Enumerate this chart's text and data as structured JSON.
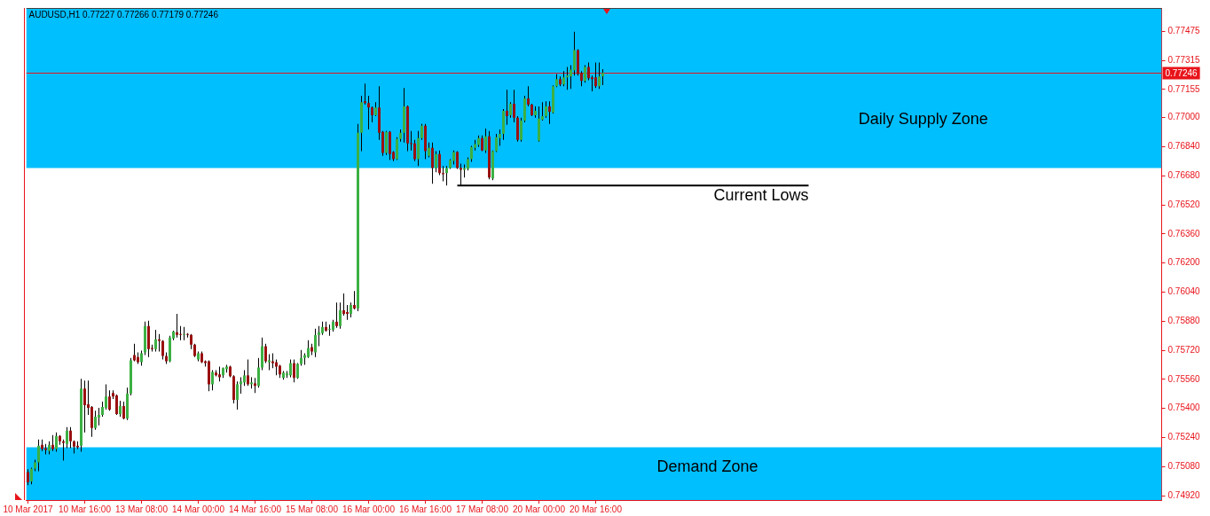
{
  "chart_data": {
    "type": "candlestick",
    "title": "AUDUSD,H1 0.77227 0.77266 0.77179 0.77246",
    "categories": [
      "10 Mar 2017",
      null,
      null,
      null,
      null,
      null,
      null,
      null,
      null,
      null,
      null,
      null,
      null,
      null,
      null,
      null,
      "10 Mar 16:00",
      null,
      null,
      null,
      null,
      null,
      null,
      null,
      null,
      null,
      null,
      null,
      null,
      null,
      null,
      null,
      "13 Mar 08:00",
      null,
      null,
      null,
      null,
      null,
      null,
      null,
      null,
      null,
      null,
      null,
      null,
      null,
      null,
      null,
      "14 Mar 00:00",
      null,
      null,
      null,
      null,
      null,
      null,
      null,
      null,
      null,
      null,
      null,
      null,
      null,
      null,
      null,
      "14 Mar 16:00",
      null,
      null,
      null,
      null,
      null,
      null,
      null,
      null,
      null,
      null,
      null,
      null,
      null,
      null,
      null,
      "15 Mar 08:00",
      null,
      null,
      null,
      null,
      null,
      null,
      null,
      null,
      null,
      null,
      null,
      null,
      null,
      null,
      null,
      "16 Mar 00:00",
      null,
      null,
      null,
      null,
      null,
      null,
      null,
      null,
      null,
      null,
      null,
      null,
      null,
      null,
      null,
      "16 Mar 16:00",
      null,
      null,
      null,
      null,
      null,
      null,
      null,
      null,
      null,
      null,
      null,
      null,
      null,
      null,
      null,
      "17 Mar 08:00",
      null,
      null,
      null,
      null,
      null,
      null,
      null,
      null,
      null,
      null,
      null,
      null,
      null,
      null,
      null,
      "20 Mar 00:00",
      null,
      null,
      null,
      null,
      null,
      null,
      null,
      null,
      null,
      null,
      null,
      null,
      null,
      null,
      null,
      "20 Mar 16:00",
      null,
      null,
      null,
      null,
      null,
      null,
      null,
      null,
      null,
      null,
      null,
      null,
      null,
      null,
      null,
      null,
      null,
      null,
      null,
      null,
      null,
      null,
      null,
      null,
      null,
      null,
      null,
      null,
      null,
      null,
      null,
      null,
      null,
      null,
      null,
      null,
      null,
      null,
      null,
      null,
      null,
      null,
      null,
      null,
      null,
      null,
      null,
      null,
      null,
      null,
      null,
      null,
      null,
      null,
      null,
      null,
      null,
      null,
      null,
      null,
      null,
      null,
      null,
      null,
      null,
      null,
      null,
      null,
      null,
      null,
      null,
      null,
      null,
      null,
      null,
      null,
      null,
      null,
      null,
      null,
      null,
      null,
      null,
      null,
      null,
      null,
      null,
      null,
      null,
      null,
      null,
      null,
      null,
      null,
      null,
      null,
      null,
      null,
      null,
      null,
      null,
      null,
      null,
      null,
      null,
      null,
      null,
      null,
      null,
      null,
      null,
      null,
      null,
      null,
      null,
      null,
      null,
      null,
      null,
      null,
      null,
      null,
      null,
      null,
      null,
      null,
      null,
      null,
      null,
      null,
      null,
      null,
      null,
      null,
      null,
      null,
      null,
      null,
      null,
      null,
      null,
      null,
      null,
      null,
      null,
      null,
      null,
      null,
      null,
      null,
      null,
      null,
      null,
      null,
      null,
      null,
      null,
      null,
      null
    ],
    "ohlc": [
      [
        0.7505,
        0.75065,
        0.74978,
        0.74993
      ],
      [
        0.74998,
        0.75074,
        0.74983,
        0.75069
      ],
      [
        0.75069,
        0.75118,
        0.75055,
        0.75103
      ],
      [
        0.75103,
        0.75229,
        0.75055,
        0.75195
      ],
      [
        0.752,
        0.75229,
        0.75166,
        0.75176
      ],
      [
        0.75181,
        0.75205,
        0.75147,
        0.75171
      ],
      [
        0.75166,
        0.75219,
        0.75147,
        0.752
      ],
      [
        0.752,
        0.75253,
        0.75166,
        0.75176
      ],
      [
        0.75176,
        0.75268,
        0.75162,
        0.75248
      ],
      [
        0.75248,
        0.75253,
        0.752,
        0.75219
      ],
      [
        0.75219,
        0.75229,
        0.75113,
        0.7521
      ],
      [
        0.75205,
        0.75297,
        0.75181,
        0.75278
      ],
      [
        0.75278,
        0.75297,
        0.75181,
        0.75219
      ],
      [
        0.75219,
        0.75224,
        0.75152,
        0.7519
      ],
      [
        0.75195,
        0.75219,
        0.75176,
        0.75186
      ],
      [
        0.75195,
        0.75563,
        0.75162,
        0.75509
      ],
      [
        0.75509,
        0.75553,
        0.75268,
        0.75418
      ],
      [
        0.75423,
        0.75553,
        0.75364,
        0.75403
      ],
      [
        0.75408,
        0.75413,
        0.75243,
        0.75292
      ],
      [
        0.75292,
        0.75388,
        0.75283,
        0.75355
      ],
      [
        0.7535,
        0.75403,
        0.75307,
        0.75364
      ],
      [
        0.75364,
        0.75437,
        0.75355,
        0.75408
      ],
      [
        0.75403,
        0.75533,
        0.75393,
        0.75466
      ],
      [
        0.75466,
        0.755,
        0.75388,
        0.75393
      ],
      [
        0.75485,
        0.755,
        0.75452,
        0.75466
      ],
      [
        0.75471,
        0.75476,
        0.75364,
        0.75369
      ],
      [
        0.75369,
        0.75442,
        0.75355,
        0.75413
      ],
      [
        0.75413,
        0.75437,
        0.7534,
        0.75345
      ],
      [
        0.75345,
        0.75514,
        0.75336,
        0.75481
      ],
      [
        0.75481,
        0.75678,
        0.75471,
        0.75664
      ],
      [
        0.75693,
        0.75756,
        0.75659,
        0.75664
      ],
      [
        0.75683,
        0.75708,
        0.75645,
        0.75654
      ],
      [
        0.75654,
        0.75718,
        0.75635,
        0.75703
      ],
      [
        0.75708,
        0.75877,
        0.75693,
        0.75853
      ],
      [
        0.75853,
        0.75882,
        0.75683,
        0.75727
      ],
      [
        0.75732,
        0.75751,
        0.75713,
        0.75727
      ],
      [
        0.75727,
        0.75833,
        0.75713,
        0.7578
      ],
      [
        0.7578,
        0.75809,
        0.75713,
        0.75771
      ],
      [
        0.75771,
        0.75775,
        0.75669,
        0.75688
      ],
      [
        0.75688,
        0.75708,
        0.75645,
        0.75659
      ],
      [
        0.75659,
        0.75799,
        0.75654,
        0.7579
      ],
      [
        0.75785,
        0.75828,
        0.75775,
        0.75823
      ],
      [
        0.75819,
        0.7592,
        0.7579,
        0.75804
      ],
      [
        0.75809,
        0.75853,
        0.75775,
        0.75804
      ],
      [
        0.75804,
        0.75848,
        0.75775,
        0.75809
      ],
      [
        0.75809,
        0.75814,
        0.7579,
        0.75804
      ],
      [
        0.75804,
        0.75809,
        0.75727,
        0.75751
      ],
      [
        0.75751,
        0.75756,
        0.75683,
        0.75688
      ],
      [
        0.75669,
        0.75713,
        0.75659,
        0.75703
      ],
      [
        0.75703,
        0.75713,
        0.75649,
        0.75654
      ],
      [
        0.75659,
        0.75664,
        0.7563,
        0.75649
      ],
      [
        0.75659,
        0.75664,
        0.75495,
        0.75533
      ],
      [
        0.75533,
        0.75611,
        0.755,
        0.75601
      ],
      [
        0.75597,
        0.75611,
        0.75577,
        0.75582
      ],
      [
        0.75587,
        0.7563,
        0.75548,
        0.75572
      ],
      [
        0.75582,
        0.75625,
        0.75568,
        0.75621
      ],
      [
        0.75616,
        0.7564,
        0.75597,
        0.7563
      ],
      [
        0.7563,
        0.75635,
        0.75572,
        0.75577
      ],
      [
        0.75577,
        0.75582,
        0.75428,
        0.75447
      ],
      [
        0.75447,
        0.75548,
        0.75393,
        0.75533
      ],
      [
        0.75533,
        0.75572,
        0.75481,
        0.75548
      ],
      [
        0.75543,
        0.75611,
        0.75524,
        0.75582
      ],
      [
        0.75582,
        0.75669,
        0.75524,
        0.75533
      ],
      [
        0.75533,
        0.75572,
        0.75509,
        0.75543
      ],
      [
        0.75538,
        0.75568,
        0.75485,
        0.75524
      ],
      [
        0.75524,
        0.75678,
        0.75514,
        0.75625
      ],
      [
        0.75625,
        0.7579,
        0.75611,
        0.75742
      ],
      [
        0.75742,
        0.75756,
        0.75649,
        0.75659
      ],
      [
        0.75654,
        0.75698,
        0.75611,
        0.75664
      ],
      [
        0.75659,
        0.75703,
        0.75621,
        0.75649
      ],
      [
        0.75654,
        0.75669,
        0.75582,
        0.7563
      ],
      [
        0.75635,
        0.7564,
        0.75568,
        0.75587
      ],
      [
        0.75568,
        0.75606,
        0.75558,
        0.75597
      ],
      [
        0.75582,
        0.75606,
        0.75568,
        0.75592
      ],
      [
        0.75582,
        0.75669,
        0.75572,
        0.75649
      ],
      [
        0.75649,
        0.75669,
        0.75543,
        0.75568
      ],
      [
        0.75568,
        0.75649,
        0.75563,
        0.75645
      ],
      [
        0.75645,
        0.75722,
        0.75635,
        0.75678
      ],
      [
        0.75678,
        0.75703,
        0.7564,
        0.75693
      ],
      [
        0.75683,
        0.75775,
        0.75678,
        0.75732
      ],
      [
        0.75737,
        0.75756,
        0.75693,
        0.75713
      ],
      [
        0.75708,
        0.75838,
        0.75683,
        0.75804
      ],
      [
        0.75804,
        0.75853,
        0.75742,
        0.75819
      ],
      [
        0.75814,
        0.75877,
        0.75804,
        0.75848
      ],
      [
        0.75848,
        0.75877,
        0.75823,
        0.75828
      ],
      [
        0.75833,
        0.75862,
        0.75799,
        0.75838
      ],
      [
        0.75833,
        0.75887,
        0.75823,
        0.75877
      ],
      [
        0.75877,
        0.75983,
        0.75843,
        0.75853
      ],
      [
        0.75853,
        0.75983,
        0.75838,
        0.7594
      ],
      [
        0.7594,
        0.76032,
        0.75911,
        0.7592
      ],
      [
        0.7593,
        0.75969,
        0.75887,
        0.7592
      ],
      [
        0.7592,
        0.75983,
        0.75901,
        0.75969
      ],
      [
        0.75969,
        0.76046,
        0.75945,
        0.7595
      ],
      [
        0.7595,
        0.76965,
        0.75935,
        0.76916
      ],
      [
        0.76916,
        0.7712,
        0.76815,
        0.77085
      ],
      [
        0.7709,
        0.77187,
        0.77071,
        0.7708
      ],
      [
        0.7708,
        0.7712,
        0.76935,
        0.77056
      ],
      [
        0.77056,
        0.77061,
        0.76974,
        0.77013
      ],
      [
        0.77013,
        0.77085,
        0.77008,
        0.77056
      ],
      [
        0.77056,
        0.77173,
        0.76878,
        0.76916
      ],
      [
        0.76921,
        0.76926,
        0.7679,
        0.76805
      ],
      [
        0.76805,
        0.76926,
        0.76795,
        0.76921
      ],
      [
        0.76921,
        0.76926,
        0.76766,
        0.768
      ],
      [
        0.7681,
        0.76815,
        0.76761,
        0.76771
      ],
      [
        0.76771,
        0.76892,
        0.76766,
        0.76882
      ],
      [
        0.76882,
        0.76935,
        0.76868,
        0.76916
      ],
      [
        0.76916,
        0.77163,
        0.76863,
        0.77061
      ],
      [
        0.77061,
        0.77066,
        0.76815,
        0.76858
      ],
      [
        0.76858,
        0.76926,
        0.76819,
        0.76854
      ],
      [
        0.76858,
        0.76878,
        0.76761,
        0.76771
      ],
      [
        0.76771,
        0.76926,
        0.76733,
        0.76887
      ],
      [
        0.76887,
        0.76965,
        0.76878,
        0.76955
      ],
      [
        0.76955,
        0.76965,
        0.76771,
        0.76815
      ],
      [
        0.7679,
        0.76863,
        0.76781,
        0.76834
      ],
      [
        0.76834,
        0.76863,
        0.76636,
        0.76723
      ],
      [
        0.76723,
        0.76815,
        0.76699,
        0.768
      ],
      [
        0.768,
        0.76819,
        0.76684,
        0.76694
      ],
      [
        0.76694,
        0.76733,
        0.7665,
        0.76689
      ],
      [
        0.76694,
        0.76733,
        0.76626,
        0.76723
      ],
      [
        0.76723,
        0.76771,
        0.76718,
        0.76766
      ],
      [
        0.76762,
        0.76819,
        0.76742,
        0.7681
      ],
      [
        0.7681,
        0.76815,
        0.76718,
        0.76723
      ],
      [
        0.76723,
        0.76747,
        0.76626,
        0.76713
      ],
      [
        0.76713,
        0.76742,
        0.7667,
        0.76723
      ],
      [
        0.76718,
        0.76781,
        0.76709,
        0.76771
      ],
      [
        0.76771,
        0.76844,
        0.76757,
        0.76839
      ],
      [
        0.76834,
        0.76878,
        0.76819,
        0.76854
      ],
      [
        0.76849,
        0.76902,
        0.76839,
        0.76887
      ],
      [
        0.76887,
        0.76902,
        0.76815,
        0.76819
      ],
      [
        0.76819,
        0.7694,
        0.76805,
        0.76897
      ],
      [
        0.76897,
        0.76926,
        0.7666,
        0.7667
      ],
      [
        0.76665,
        0.76819,
        0.76655,
        0.76815
      ],
      [
        0.76815,
        0.76911,
        0.7681,
        0.76892
      ],
      [
        0.76887,
        0.76935,
        0.76844,
        0.76911
      ],
      [
        0.76911,
        0.77047,
        0.76878,
        0.77037
      ],
      [
        0.77037,
        0.77153,
        0.7696,
        0.77008
      ],
      [
        0.77013,
        0.77085,
        0.76999,
        0.77076
      ],
      [
        0.77076,
        0.77153,
        0.76974,
        0.76999
      ],
      [
        0.76999,
        0.77008,
        0.76868,
        0.76878
      ],
      [
        0.76878,
        0.76999,
        0.76868,
        0.76984
      ],
      [
        0.76984,
        0.7712,
        0.76974,
        0.77105
      ],
      [
        0.77105,
        0.77173,
        0.77061,
        0.77071
      ],
      [
        0.77071,
        0.77076,
        0.77008,
        0.77013
      ],
      [
        0.77013,
        0.77061,
        0.76999,
        0.77037
      ],
      [
        0.76873,
        0.77061,
        0.76868,
        0.76994
      ],
      [
        0.76989,
        0.77085,
        0.76984,
        0.77008
      ],
      [
        0.77008,
        0.7709,
        0.76999,
        0.77061
      ],
      [
        0.77061,
        0.7709,
        0.76965,
        0.77032
      ],
      [
        0.77027,
        0.77177,
        0.77022,
        0.77173
      ],
      [
        0.77173,
        0.7724,
        0.77168,
        0.77211
      ],
      [
        0.77211,
        0.77226,
        0.77173,
        0.77182
      ],
      [
        0.77182,
        0.77255,
        0.77173,
        0.77221
      ],
      [
        0.77221,
        0.77279,
        0.77153,
        0.77231
      ],
      [
        0.77226,
        0.77289,
        0.77158,
        0.77264
      ],
      [
        0.7726,
        0.77472,
        0.77231,
        0.77371
      ],
      [
        0.77371,
        0.77376,
        0.77231,
        0.7724
      ],
      [
        0.77245,
        0.77255,
        0.77173,
        0.77202
      ],
      [
        0.77202,
        0.77289,
        0.77192,
        0.77279
      ],
      [
        0.77279,
        0.77303,
        0.77206,
        0.77216
      ],
      [
        0.77221,
        0.77231,
        0.77144,
        0.77211
      ],
      [
        0.77221,
        0.77303,
        0.77163,
        0.77173
      ],
      [
        0.77173,
        0.77303,
        0.77158,
        0.77226
      ],
      [
        0.77227,
        0.77266,
        0.77179,
        0.77246
      ],
      null,
      null,
      null,
      null,
      null,
      null,
      null,
      null,
      null,
      null,
      null,
      null,
      null,
      null,
      null,
      null,
      null,
      null,
      null,
      null,
      null,
      null,
      null,
      null,
      null,
      null,
      null,
      null,
      null,
      null,
      null,
      null,
      null,
      null,
      null,
      null,
      null,
      null,
      null,
      null,
      null,
      null,
      null,
      null,
      null,
      null,
      null,
      null,
      null,
      null,
      null,
      null,
      null,
      null,
      null,
      null,
      null,
      null,
      null,
      null,
      null,
      null,
      null,
      null,
      null,
      null,
      null,
      null,
      null,
      null,
      null,
      null,
      null,
      null,
      null,
      null,
      null,
      null,
      null,
      null,
      null,
      null,
      null,
      null,
      null,
      null,
      null,
      null,
      null,
      null,
      null,
      null,
      null,
      null,
      null,
      null,
      null,
      null,
      null,
      null,
      null,
      null,
      null,
      null,
      null,
      null,
      null,
      null,
      null,
      null,
      null,
      null,
      null,
      null,
      null,
      null,
      null,
      null,
      null,
      null,
      null,
      null,
      null,
      null,
      null,
      null,
      null,
      null,
      null,
      null,
      null,
      null,
      null,
      null,
      null,
      null,
      null,
      null,
      null,
      null,
      null,
      null,
      null,
      null,
      null,
      null,
      null,
      null,
      null,
      null,
      null,
      null,
      null,
      null,
      null,
      null,
      null
    ],
    "series": [
      {
        "name": "Current Lows",
        "type": "line",
        "color": "#000000",
        "values": [
          null,
          null,
          null,
          null,
          null,
          null,
          null,
          null,
          null,
          null,
          null,
          null,
          null,
          null,
          null,
          null,
          null,
          null,
          null,
          null,
          null,
          null,
          null,
          null,
          null,
          null,
          null,
          null,
          null,
          null,
          null,
          null,
          null,
          null,
          null,
          null,
          null,
          null,
          null,
          null,
          null,
          null,
          null,
          null,
          null,
          null,
          null,
          null,
          null,
          null,
          null,
          null,
          null,
          null,
          null,
          null,
          null,
          null,
          null,
          null,
          null,
          null,
          null,
          null,
          null,
          null,
          null,
          null,
          null,
          null,
          null,
          null,
          null,
          null,
          null,
          null,
          null,
          null,
          null,
          null,
          null,
          null,
          null,
          null,
          null,
          null,
          null,
          null,
          null,
          null,
          null,
          null,
          null,
          null,
          null,
          null,
          null,
          null,
          null,
          null,
          null,
          null,
          null,
          null,
          null,
          null,
          null,
          null,
          null,
          null,
          null,
          null,
          null,
          null,
          null,
          null,
          null,
          null,
          null,
          null,
          null,
          0.76626,
          0.76626,
          0.76626,
          0.76626,
          0.76626,
          0.76626,
          0.76626,
          0.76626,
          0.76626,
          0.76626,
          0.76626,
          0.76626,
          0.76626,
          0.76626,
          0.76626,
          0.76626,
          0.76626,
          0.76626,
          0.76626,
          0.76626,
          0.76626,
          0.76626,
          0.76626,
          0.76626,
          0.76626,
          0.76626,
          0.76626,
          0.76626,
          0.76626,
          0.76626,
          0.76626,
          0.76626,
          0.76626,
          0.76626,
          0.76626,
          0.76626,
          0.76626,
          0.76626,
          0.76626,
          0.76626,
          0.76626,
          0.76626,
          0.76626,
          0.76626,
          0.76626,
          0.76626,
          0.76626,
          0.76626,
          0.76626,
          0.76626,
          0.76626,
          0.76626,
          0.76626,
          0.76626,
          0.76626,
          0.76626,
          0.76626,
          0.76626,
          0.76626,
          0.76626,
          0.76626,
          0.76626,
          0.76626,
          0.76626,
          0.76626,
          0.76626,
          0.76626,
          0.76626,
          0.76626,
          0.76626,
          0.76626,
          0.76626,
          0.76626,
          0.76626,
          0.76626,
          0.76626,
          0.76626,
          0.76626,
          0.76626,
          0.76626,
          0.76626,
          0.76626,
          0.76626,
          0.76626,
          0.76626,
          0.76626,
          0.76626,
          0.76626,
          0.76626,
          0.76626,
          0.76626,
          0.76626,
          0.76626,
          0.76626,
          0.76626,
          0.76626,
          0.76626,
          0.76626,
          0.76626,
          0.76626,
          null,
          null,
          null,
          null,
          null,
          null,
          null,
          null,
          null,
          null,
          null,
          null,
          null,
          null,
          null,
          null,
          null,
          null,
          null,
          null,
          null,
          null,
          null,
          null,
          null,
          null,
          null,
          null,
          null,
          null,
          null,
          null,
          null,
          null,
          null,
          null,
          null,
          null,
          null,
          null,
          null,
          null,
          null,
          null,
          null,
          null,
          null,
          null,
          null,
          null,
          null,
          null,
          null,
          null,
          null,
          null,
          null,
          null,
          null,
          null,
          null,
          null,
          null,
          null,
          null,
          null,
          null,
          null,
          null,
          null,
          null,
          null,
          null,
          null,
          null,
          null,
          null,
          null,
          null,
          null,
          null,
          null,
          null,
          null,
          null,
          null,
          null,
          null,
          null,
          null,
          null,
          null,
          null,
          null,
          null,
          null,
          null,
          null,
          null
        ]
      }
    ],
    "ylim": [
      0.74896,
      0.77603
    ],
    "yticks": [
      0.77475,
      0.77315,
      0.77155,
      {
        "value": 0.77,
        "label": "0.77000"
      },
      {
        "value": 0.7684,
        "label": "0.76840"
      },
      {
        "value": 0.7668,
        "label": "0.76680"
      },
      {
        "value": 0.7652,
        "label": "0.76520"
      },
      {
        "value": 0.7636,
        "label": "0.76360"
      },
      {
        "value": 0.762,
        "label": "0.76200"
      },
      {
        "value": 0.7604,
        "label": "0.76040"
      },
      {
        "value": 0.7588,
        "label": "0.75880"
      },
      {
        "value": 0.7572,
        "label": "0.75720"
      },
      {
        "value": 0.7556,
        "label": "0.75560"
      },
      {
        "value": 0.754,
        "label": "0.75400"
      },
      {
        "value": 0.7524,
        "label": "0.75240"
      },
      {
        "value": 0.7508,
        "label": "0.75080"
      },
      {
        "value": 0.7492,
        "label": "0.74920"
      }
    ],
    "bands": [
      {
        "axis": "y",
        "from": 0.76723,
        "to": 0.77603,
        "label": "Daily Supply Zone",
        "color": "#00bfff"
      },
      {
        "axis": "y",
        "from": 0.74896,
        "to": 0.75186,
        "label": "Demand Zone",
        "color": "#00bfff"
      }
    ],
    "ref_lines": [
      {
        "axis": "y",
        "value": 0.77246,
        "label": "0.77246",
        "color": "#e8141b"
      }
    ]
  }
}
